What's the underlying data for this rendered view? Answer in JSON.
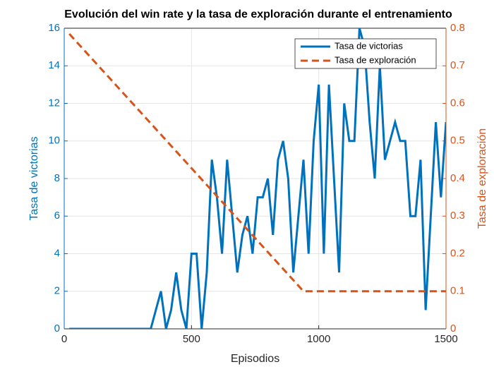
{
  "chart_data": {
    "type": "line",
    "title": "Evolución del win rate y la tasa de exploración durante el entrenamiento",
    "xlabel": "Episodios",
    "ylabel": "Tasa de victorias",
    "y2label": "Tasa de exploración",
    "xlim": [
      0,
      1500
    ],
    "xticks": [
      0,
      500,
      1000,
      1500
    ],
    "ylim": [
      0,
      16
    ],
    "yticks": [
      0,
      2,
      4,
      6,
      8,
      10,
      12,
      14,
      16
    ],
    "y2lim": [
      0,
      0.8
    ],
    "y2ticks": [
      0,
      0.1,
      0.2,
      0.3,
      0.4,
      0.5,
      0.6,
      0.7,
      0.8
    ],
    "grid": true,
    "legend": "upper right",
    "series": [
      {
        "name": "Tasa de victorias",
        "color": "#0072BD",
        "style": "solid",
        "x": [
          20,
          40,
          60,
          80,
          100,
          120,
          140,
          160,
          180,
          200,
          220,
          240,
          260,
          280,
          300,
          320,
          340,
          360,
          380,
          400,
          420,
          440,
          460,
          480,
          500,
          520,
          540,
          560,
          580,
          600,
          620,
          640,
          660,
          680,
          700,
          720,
          740,
          760,
          780,
          800,
          820,
          840,
          860,
          880,
          900,
          920,
          940,
          960,
          980,
          1000,
          1020,
          1040,
          1060,
          1080,
          1100,
          1120,
          1140,
          1160,
          1180,
          1200,
          1220,
          1240,
          1260,
          1280,
          1300,
          1320,
          1340,
          1360,
          1380,
          1400,
          1420,
          1440,
          1460,
          1480,
          1500
        ],
        "values": [
          0,
          0,
          0,
          0,
          0,
          0,
          0,
          0,
          0,
          0,
          0,
          0,
          0,
          0,
          0,
          0,
          0,
          1,
          2,
          0,
          1,
          3,
          1,
          0,
          4,
          4,
          0,
          3,
          9,
          7,
          4,
          9,
          6,
          3,
          5,
          6,
          4,
          7,
          7,
          8,
          5,
          9,
          10,
          8,
          3,
          6,
          9,
          4,
          10,
          13,
          4,
          13,
          8,
          3,
          12,
          10,
          10,
          16,
          15,
          11,
          8,
          14,
          9,
          10,
          11,
          10,
          10,
          6,
          6,
          9,
          1,
          6,
          11,
          7,
          11
        ]
      },
      {
        "name": "Tasa de exploración",
        "color": "#D95319",
        "style": "dashed",
        "axis": "y2",
        "x": [
          20,
          940,
          1500
        ],
        "values": [
          0.785,
          0.1,
          0.1
        ]
      }
    ]
  }
}
